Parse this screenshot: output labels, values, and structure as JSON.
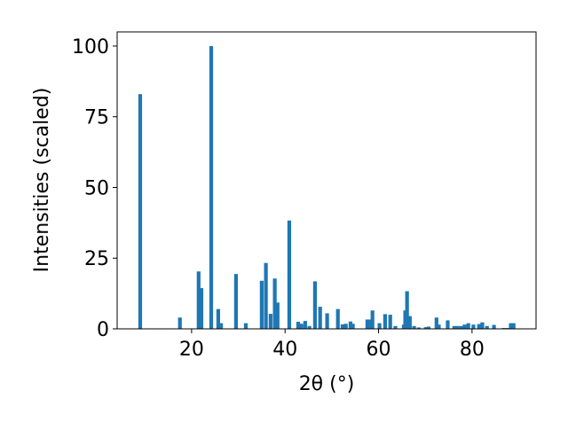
{
  "chart_data": {
    "type": "bar",
    "xlabel": "2θ (°)",
    "ylabel": "Intensities (scaled)",
    "x": [
      9.0,
      17.5,
      21.5,
      22.1,
      24.2,
      25.7,
      26.3,
      29.5,
      31.6,
      35.0,
      35.9,
      36.9,
      37.8,
      38.4,
      40.9,
      42.8,
      43.5,
      44.3,
      45.2,
      46.4,
      47.5,
      49.0,
      51.3,
      52.3,
      53.0,
      54.0,
      54.5,
      57.6,
      58.1,
      58.7,
      60.2,
      61.4,
      62.5,
      63.6,
      65.4,
      65.7,
      66.1,
      66.7,
      67.6,
      68.6,
      70.1,
      70.7,
      72.4,
      72.9,
      74.8,
      76.2,
      76.9,
      77.7,
      78.4,
      79.2,
      80.3,
      81.5,
      82.2,
      83.2,
      84.7,
      86.8,
      87.6,
      88.3,
      88.9
    ],
    "values": [
      83,
      4,
      20.3,
      14.4,
      100,
      7,
      2,
      19.4,
      2,
      17,
      23.3,
      5.3,
      17.8,
      9.3,
      38.3,
      2.5,
      1.8,
      2.8,
      1,
      16.8,
      7.8,
      5.5,
      7,
      1.6,
      1.8,
      2.6,
      1.8,
      3.3,
      3.3,
      6.5,
      2,
      5.2,
      5,
      1,
      1.5,
      6.5,
      13.3,
      4.5,
      1,
      0.5,
      0.6,
      0.8,
      4,
      1.5,
      3,
      1,
      1,
      1,
      1.5,
      2,
      1.5,
      1.7,
      2.3,
      1,
      1.4,
      0.3,
      0.3,
      2,
      2
    ],
    "bar_width": 0.8,
    "color": "#1f77b4",
    "xlim": [
      4.07,
      93.7
    ],
    "ylim": [
      0,
      105
    ],
    "xticks": [
      20,
      40,
      60,
      80
    ],
    "yticks": [
      0,
      25,
      50,
      75,
      100
    ],
    "grid": false
  }
}
